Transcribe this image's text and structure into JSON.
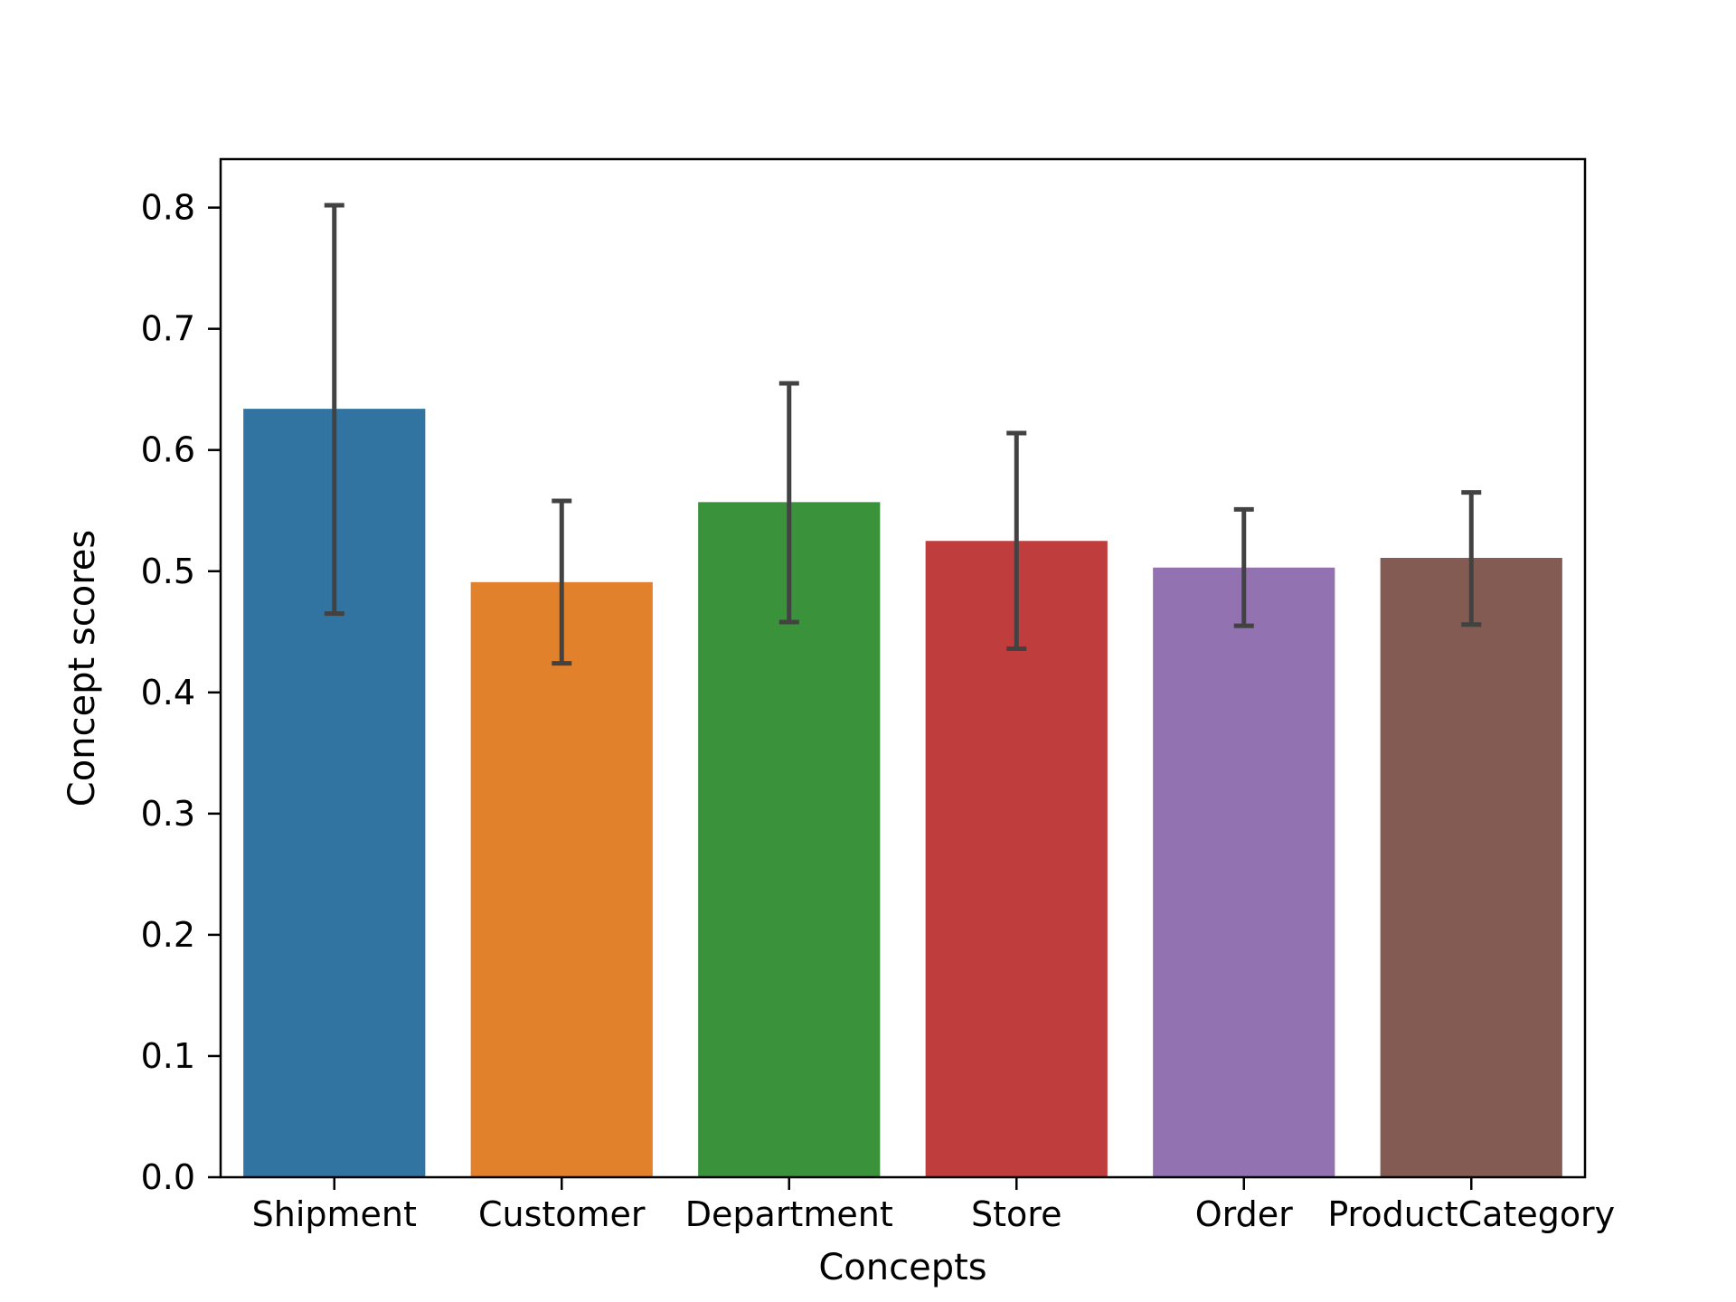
{
  "chart_data": {
    "type": "bar",
    "title": "",
    "xlabel": "Concepts",
    "ylabel": "Concept scores",
    "ylim": [
      0,
      0.84
    ],
    "yticks": [
      0.0,
      0.1,
      0.2,
      0.3,
      0.4,
      0.5,
      0.6,
      0.7,
      0.8
    ],
    "ytick_labels": [
      "0.0",
      "0.1",
      "0.2",
      "0.3",
      "0.4",
      "0.5",
      "0.6",
      "0.7",
      "0.8"
    ],
    "categories": [
      "Shipment",
      "Customer",
      "Department",
      "Store",
      "Order",
      "ProductCategory"
    ],
    "values": [
      0.634,
      0.491,
      0.557,
      0.525,
      0.503,
      0.511
    ],
    "error_low": [
      0.465,
      0.424,
      0.458,
      0.436,
      0.455,
      0.456
    ],
    "error_high": [
      0.802,
      0.558,
      0.655,
      0.614,
      0.551,
      0.565
    ],
    "colors": [
      "#3274a1",
      "#e1812c",
      "#3a923a",
      "#c03d3e",
      "#9372b2",
      "#845b53"
    ],
    "error_color": "#424242",
    "grid": false,
    "legend": "none"
  }
}
